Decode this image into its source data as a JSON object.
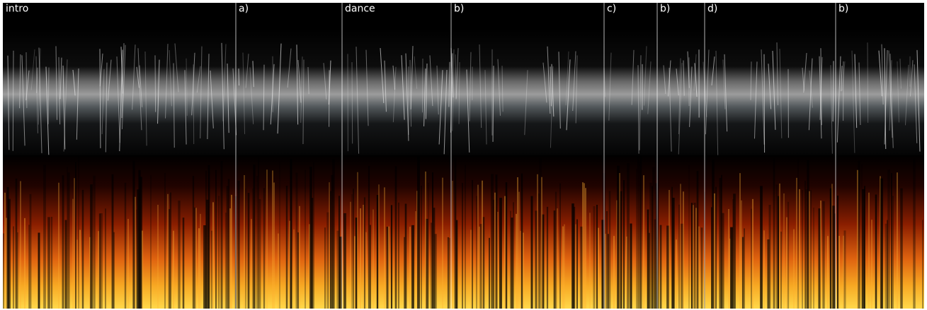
{
  "sections": [
    {
      "label": "intro"
    },
    {
      "label": "a)"
    },
    {
      "label": "dance"
    },
    {
      "label": "b)"
    },
    {
      "label": "c)"
    },
    {
      "label": "b)"
    },
    {
      "label": "d)"
    },
    {
      "label": "b)"
    }
  ]
}
